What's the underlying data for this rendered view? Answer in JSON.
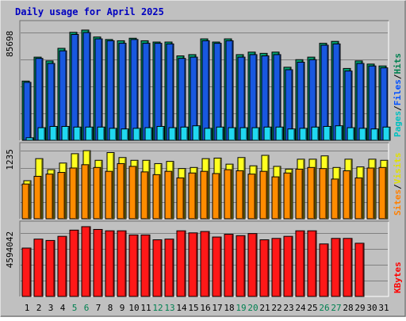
{
  "chart_data": [
    {
      "type": "bar",
      "title": "Daily usage for April 2025",
      "categories": [
        "1",
        "2",
        "3",
        "4",
        "5",
        "6",
        "7",
        "8",
        "9",
        "10",
        "11",
        "12",
        "13",
        "14",
        "15",
        "16",
        "17",
        "18",
        "19",
        "20",
        "21",
        "22",
        "23",
        "24",
        "25",
        "26",
        "27",
        "28",
        "29",
        "30",
        "31"
      ],
      "weekend_days": [
        "5",
        "6",
        "12",
        "13",
        "19",
        "20",
        "26",
        "27"
      ],
      "y_tick_label": "85698",
      "ylim": [
        0,
        95000
      ],
      "legend_vertical": [
        {
          "text": "Pages",
          "color": "#00c0c0"
        },
        {
          "text": "/",
          "color": "#000000"
        },
        {
          "text": "Files",
          "color": "#0050ff"
        },
        {
          "text": "/",
          "color": "#000000"
        },
        {
          "text": "Hits",
          "color": "#008050"
        }
      ],
      "series": [
        {
          "name": "Hits",
          "color": "#00a070",
          "values": [
            47000,
            66000,
            63000,
            73000,
            85698,
            87500,
            82000,
            80000,
            79000,
            81000,
            79000,
            78000,
            78000,
            67000,
            68000,
            80500,
            78000,
            80500,
            68000,
            70000,
            69000,
            70000,
            58000,
            64000,
            66000,
            77000,
            78500,
            57000,
            63000,
            60500,
            59000
          ]
        },
        {
          "name": "Files",
          "color": "#1858e0",
          "values": [
            46000,
            65000,
            61000,
            71000,
            84000,
            85500,
            80500,
            79000,
            77000,
            80000,
            77000,
            77000,
            76500,
            65000,
            66000,
            79000,
            77000,
            79000,
            66000,
            68000,
            67000,
            68000,
            56000,
            62000,
            64000,
            75500,
            76500,
            55000,
            61000,
            59000,
            57500
          ]
        },
        {
          "name": "Pages",
          "color": "#20d8f0",
          "values": [
            2000,
            10000,
            11000,
            11000,
            10500,
            10500,
            10500,
            9500,
            9000,
            9500,
            10000,
            11000,
            10000,
            10500,
            11500,
            9500,
            10500,
            10000,
            10000,
            10000,
            10500,
            10500,
            9000,
            9500,
            10500,
            11000,
            11500,
            10000,
            9500,
            9000,
            10500
          ]
        }
      ]
    },
    {
      "type": "bar",
      "categories": [
        "1",
        "2",
        "3",
        "4",
        "5",
        "6",
        "7",
        "8",
        "9",
        "10",
        "11",
        "12",
        "13",
        "14",
        "15",
        "16",
        "17",
        "18",
        "19",
        "20",
        "21",
        "22",
        "23",
        "24",
        "25",
        "26",
        "27",
        "28",
        "29",
        "30",
        "31"
      ],
      "y_tick_label": "1235",
      "ylim": [
        0,
        1380
      ],
      "legend_vertical": [
        {
          "text": "Sites",
          "color": "#ff8000"
        },
        {
          "text": "/",
          "color": "#000000"
        },
        {
          "text": "Visits",
          "color": "#e0e000"
        }
      ],
      "series": [
        {
          "name": "Visits",
          "color": "#ffff20",
          "values": [
            690,
            1090,
            890,
            1010,
            1180,
            1235,
            1060,
            1200,
            1110,
            1060,
            1060,
            1000,
            1040,
            910,
            930,
            1090,
            1100,
            990,
            1110,
            960,
            1150,
            950,
            900,
            1080,
            1080,
            1140,
            930,
            1080,
            940,
            1080,
            1060
          ]
        },
        {
          "name": "Sites",
          "color": "#ff8c00",
          "values": [
            630,
            770,
            810,
            840,
            920,
            980,
            930,
            860,
            1000,
            950,
            850,
            800,
            860,
            740,
            830,
            860,
            820,
            890,
            870,
            810,
            860,
            760,
            830,
            900,
            930,
            910,
            720,
            870,
            740,
            920,
            930
          ]
        }
      ]
    },
    {
      "type": "bar",
      "categories": [
        "1",
        "2",
        "3",
        "4",
        "5",
        "6",
        "7",
        "8",
        "9",
        "10",
        "11",
        "12",
        "13",
        "14",
        "15",
        "16",
        "17",
        "18",
        "19",
        "20",
        "21",
        "22",
        "23",
        "24",
        "25",
        "26",
        "27",
        "28",
        "29",
        "30",
        "31"
      ],
      "y_tick_label": "4594042",
      "ylim": [
        0,
        5450000
      ],
      "legend_vertical": [
        {
          "text": "KBytes",
          "color": "#ff0000"
        }
      ],
      "series": [
        {
          "name": "KBytes",
          "color": "#ff1818",
          "values": [
            3500000,
            4150000,
            4050000,
            4350000,
            4800000,
            5050000,
            4850000,
            4750000,
            4750000,
            4450000,
            4450000,
            4100000,
            4150000,
            4750000,
            4600000,
            4700000,
            4300000,
            4500000,
            4400000,
            4550000,
            4100000,
            4200000,
            4350000,
            4750000,
            4750000,
            3800000,
            4200000,
            4200000,
            3850000,
            0,
            0
          ]
        }
      ]
    }
  ]
}
